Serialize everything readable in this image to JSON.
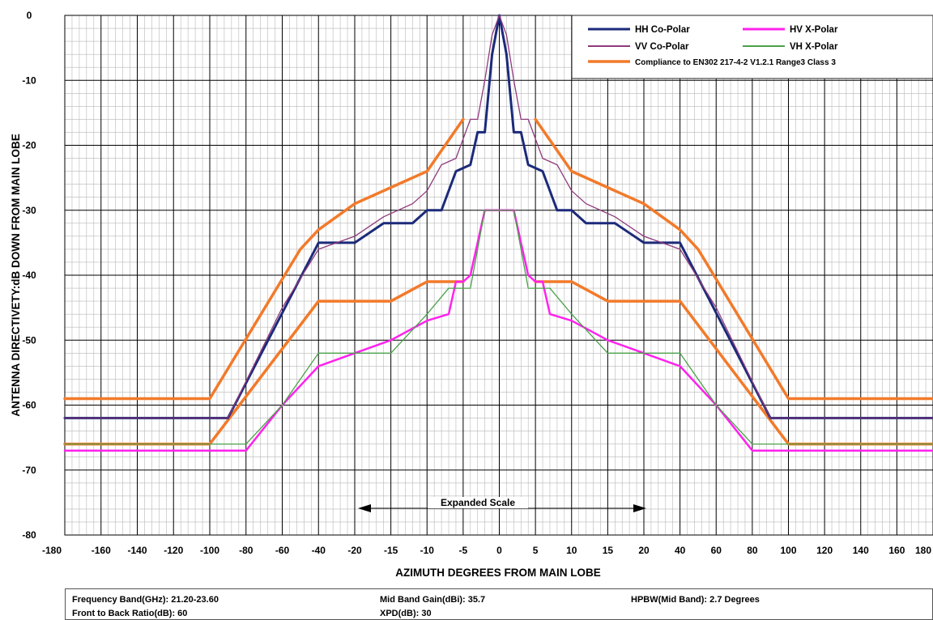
{
  "chart_data": {
    "type": "line",
    "ylabel": "ANTENNA DIRECTIVETY:dB DOWN FROM MAIN LOBE",
    "xlabel": "AZIMUTH DEGREES FROM MAIN LOBE",
    "ylim": [
      -80,
      0
    ],
    "y_ticks": [
      "0",
      "-10",
      "-20",
      "-30",
      "-40",
      "-50",
      "-60",
      "-70",
      "-80"
    ],
    "x_ticks": [
      "-180",
      "-160",
      "-140",
      "-120",
      "-100",
      "-80",
      "-60",
      "-40",
      "-20",
      "-15",
      "-10",
      "-5",
      "0",
      "5",
      "10",
      "15",
      "20",
      "40",
      "60",
      "80",
      "100",
      "120",
      "140",
      "160",
      "180"
    ],
    "x_scale": "piecewise: -180..-20 and 20..180 in steps of 20; -20..20 expanded in steps of 5",
    "grid": true,
    "legend_position": "top-right",
    "annotation": "Expanded Scale",
    "series": [
      {
        "name": "HH Co-Polar",
        "color": "#1c2a7a",
        "width": 3,
        "x": [
          -180,
          -90,
          -40,
          -20,
          -16,
          -14,
          -12,
          -10,
          -8,
          -6,
          -4,
          -3,
          -2,
          -1,
          0,
          1,
          2,
          3,
          4,
          6,
          8,
          10,
          12,
          14,
          16,
          20,
          40,
          90,
          180
        ],
        "y": [
          -62,
          -62,
          -35,
          -35,
          -32,
          -32,
          -32,
          -30,
          -30,
          -24,
          -23,
          -18,
          -18,
          -6,
          0,
          -6,
          -18,
          -18,
          -23,
          -24,
          -30,
          -30,
          -32,
          -32,
          -32,
          -35,
          -35,
          -62,
          -62
        ]
      },
      {
        "name": "VV Co-Polar",
        "color": "#8e3a7c",
        "width": 1.3,
        "x": [
          -180,
          -90,
          -60,
          -40,
          -20,
          -16,
          -12,
          -10,
          -8,
          -6,
          -4,
          -3,
          -2,
          -1,
          0,
          1,
          2,
          3,
          4,
          6,
          8,
          10,
          12,
          16,
          20,
          40,
          60,
          90,
          180
        ],
        "y": [
          -62,
          -62,
          -45,
          -36,
          -34,
          -31,
          -29,
          -27,
          -23,
          -22,
          -16,
          -16,
          -10,
          -3,
          0,
          -3,
          -10,
          -16,
          -16,
          -22,
          -23,
          -27,
          -29,
          -31,
          -34,
          -36,
          -45,
          -62,
          -62
        ]
      },
      {
        "name": "HV X-Polar",
        "color": "#ff22ee",
        "width": 2.5,
        "x": [
          -180,
          -80,
          -60,
          -40,
          -20,
          -15,
          -10,
          -7,
          -6,
          -5,
          -4,
          -3,
          -2,
          -1,
          0,
          1,
          2,
          3,
          4,
          5,
          6,
          7,
          10,
          15,
          20,
          40,
          60,
          80,
          180
        ],
        "y": [
          -67,
          -67,
          -60,
          -54,
          -52,
          -50,
          -47,
          -46,
          -41,
          -41,
          -40,
          -35,
          -30,
          -30,
          -30,
          -30,
          -30,
          -35,
          -40,
          -41,
          -41,
          -46,
          -47,
          -50,
          -52,
          -54,
          -60,
          -67,
          -67
        ]
      },
      {
        "name": "VH X-Polar",
        "color": "#4aa04a",
        "width": 1.3,
        "x": [
          -180,
          -80,
          -60,
          -40,
          -20,
          -15,
          -10,
          -7,
          -4,
          -3,
          -2,
          -1,
          0,
          1,
          2,
          3,
          4,
          7,
          10,
          15,
          20,
          40,
          60,
          80,
          180
        ],
        "y": [
          -66,
          -66,
          -60,
          -52,
          -52,
          -52,
          -46,
          -42,
          -42,
          -36,
          -30,
          -30,
          -30,
          -30,
          -30,
          -36,
          -42,
          -42,
          -46,
          -52,
          -52,
          -52,
          -60,
          -66,
          -66
        ]
      },
      {
        "name": "Compliance to EN302 217-4-2 V1.2.1 Range3 Class 3",
        "color": "#f27a2a",
        "width": 3.5,
        "x": [
          -180,
          -100,
          -50,
          -40,
          -20,
          -10,
          -5
        ],
        "y": [
          -59,
          -59,
          -36,
          -33,
          -29,
          -24,
          -16
        ]
      },
      {
        "name": "",
        "color": "#f27a2a",
        "width": 3.5,
        "x": [
          5,
          10,
          20,
          40,
          50,
          100,
          180
        ],
        "y": [
          -16,
          -24,
          -29,
          -33,
          -36,
          -59,
          -59
        ]
      },
      {
        "name": "",
        "color": "#f27a2a",
        "width": 3.5,
        "x": [
          -180,
          -100,
          -40,
          -15,
          -10,
          -5
        ],
        "y": [
          -66,
          -66,
          -44,
          -44,
          -41,
          -41
        ]
      },
      {
        "name": "",
        "color": "#f27a2a",
        "width": 3.5,
        "x": [
          5,
          10,
          15,
          40,
          100,
          180
        ],
        "y": [
          -41,
          -41,
          -44,
          -44,
          -66,
          -66
        ]
      }
    ],
    "legend": [
      {
        "label": "HH Co-Polar",
        "color": "#1c2a7a"
      },
      {
        "label": "HV X-Polar",
        "color": "#ff22ee"
      },
      {
        "label": "VV Co-Polar",
        "color": "#8e3a7c"
      },
      {
        "label": "VH X-Polar",
        "color": "#4aa04a"
      },
      {
        "label": "Compliance to EN302 217-4-2 V1.2.1 Range3 Class 3",
        "color": "#f27a2a"
      }
    ]
  },
  "specs": {
    "frequency_band": "Frequency Band(GHz): 21.20-23.60",
    "mid_band_gain": "Mid Band Gain(dBi): 35.7",
    "hpbw": "HPBW(Mid Band):  2.7 Degrees",
    "front_to_back": "Front to Back Ratio(dB): 60",
    "xpd": "XPD(dB): 30"
  }
}
